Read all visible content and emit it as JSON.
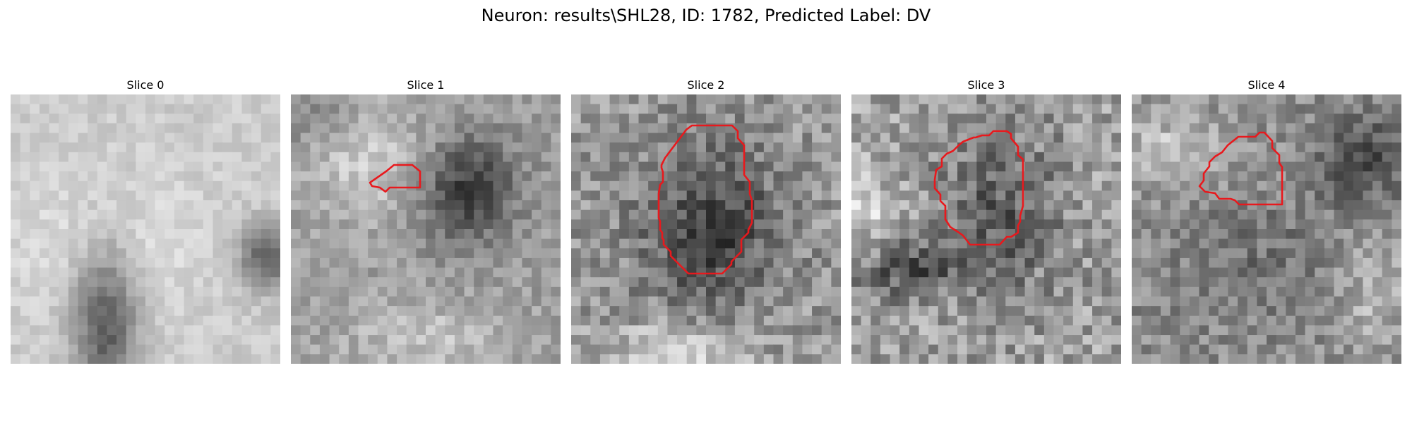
{
  "figure": {
    "title": "Neuron: results\\SHL28, ID: 1782, Predicted Label: DV"
  },
  "panels": [
    {
      "title": "Slice 0",
      "has_contour": false
    },
    {
      "title": "Slice 1",
      "has_contour": true
    },
    {
      "title": "Slice 2",
      "has_contour": true
    },
    {
      "title": "Slice 3",
      "has_contour": true
    },
    {
      "title": "Slice 4",
      "has_contour": true
    }
  ],
  "colors": {
    "contour": "#e8191d",
    "background": "#ffffff"
  }
}
